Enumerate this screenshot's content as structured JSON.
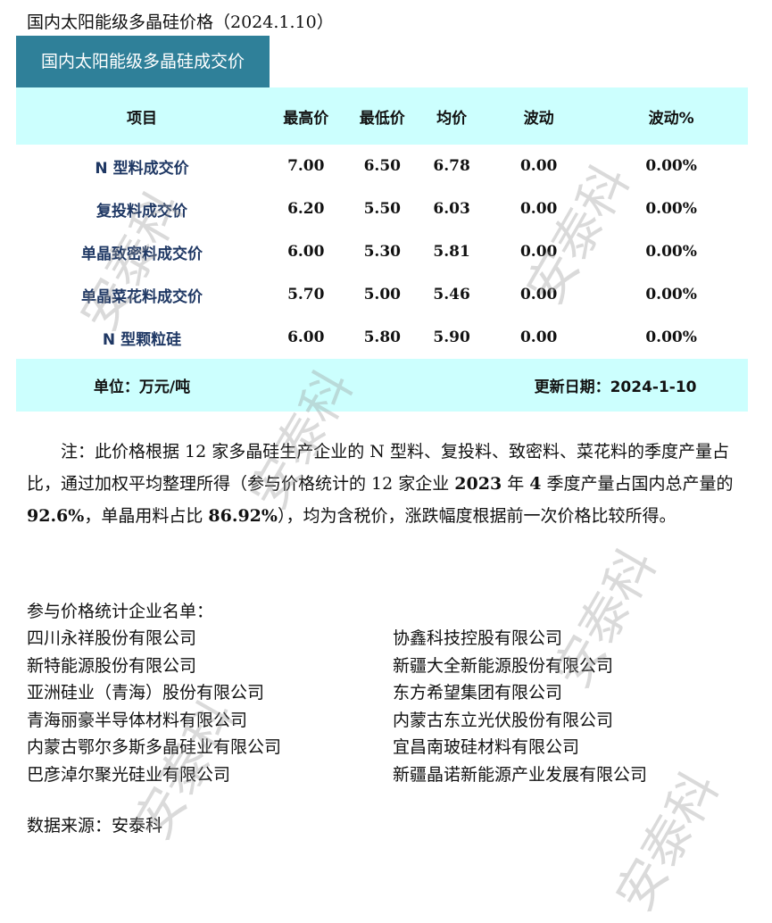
{
  "title": "国内太阳能级多晶硅价格（2024.1.10）",
  "tab": "国内太阳能级多晶硅成交价",
  "headers": [
    "项目",
    "最高价",
    "最低价",
    "均价",
    "波动",
    "波动%"
  ],
  "rows": [
    [
      "N 型料成交价",
      "7.00",
      "6.50",
      "6.78",
      "0.00",
      "0.00%"
    ],
    [
      "复投料成交价",
      "6.20",
      "5.50",
      "6.03",
      "0.00",
      "0.00%"
    ],
    [
      "单晶致密料成交价",
      "6.00",
      "5.30",
      "5.81",
      "0.00",
      "0.00%"
    ],
    [
      "单晶菜花料成交价",
      "5.70",
      "5.00",
      "5.46",
      "0.00",
      "0.00%"
    ],
    [
      "N 型颗粒硅",
      "6.00",
      "5.80",
      "5.90",
      "0.00",
      "0.00%"
    ]
  ],
  "footer": {
    "unit": "单位：万元/吨",
    "updated": "更新日期：2024-1-10"
  },
  "note": {
    "p1": "注：此价格根据 12 家多晶硅生产企业的 N 型料、复投料、致密料、菜花料的季度产量占比，通过加权平均整理所得（参与价格统计的 12 家企业 ",
    "b1": "2023",
    "p2": " 年 ",
    "b2": "4",
    "p3": " 季度产量占国内总产量的 ",
    "b3": "92.6%",
    "p4": "，单晶用料占比 ",
    "b4": "86.92%",
    "p5": "），均为含税价，涨跌幅度根据前一次价格比较所得。"
  },
  "list_title": "参与价格统计企业名单：",
  "companies_left": [
    "四川永祥股份有限公司",
    "新特能源股份有限公司",
    "亚洲硅业（青海）股份有限公司",
    "青海丽豪半导体材料有限公司",
    "内蒙古鄂尔多斯多晶硅业有限公司",
    "巴彦淖尔聚光硅业有限公司"
  ],
  "companies_right": [
    "协鑫科技控股有限公司",
    "新疆大全新能源股份有限公司",
    "东方希望集团有限公司",
    "内蒙古东立光伏股份有限公司",
    "宜昌南玻硅材料有限公司",
    "新疆晶诺新能源产业发展有限公司"
  ],
  "source": "数据来源：安泰科",
  "watermark": "安泰科"
}
